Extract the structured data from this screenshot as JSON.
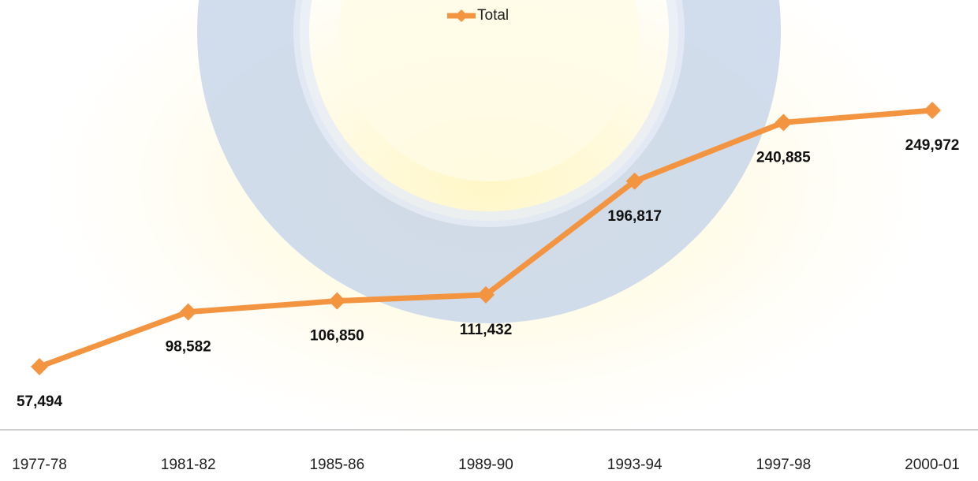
{
  "chart_data": {
    "type": "line",
    "categories": [
      "1977-78",
      "1981-82",
      "1985-86",
      "1989-90",
      "1993-94",
      "1997-98",
      "2000-01"
    ],
    "series": [
      {
        "name": "Total",
        "color": "#f39540",
        "values": [
          57494,
          98582,
          106850,
          111432,
          196817,
          240885,
          249972
        ],
        "value_labels": [
          "57,494",
          "98,582",
          "106,850",
          "111,432",
          "196,817",
          "240,885",
          "249,972"
        ]
      }
    ]
  }
}
